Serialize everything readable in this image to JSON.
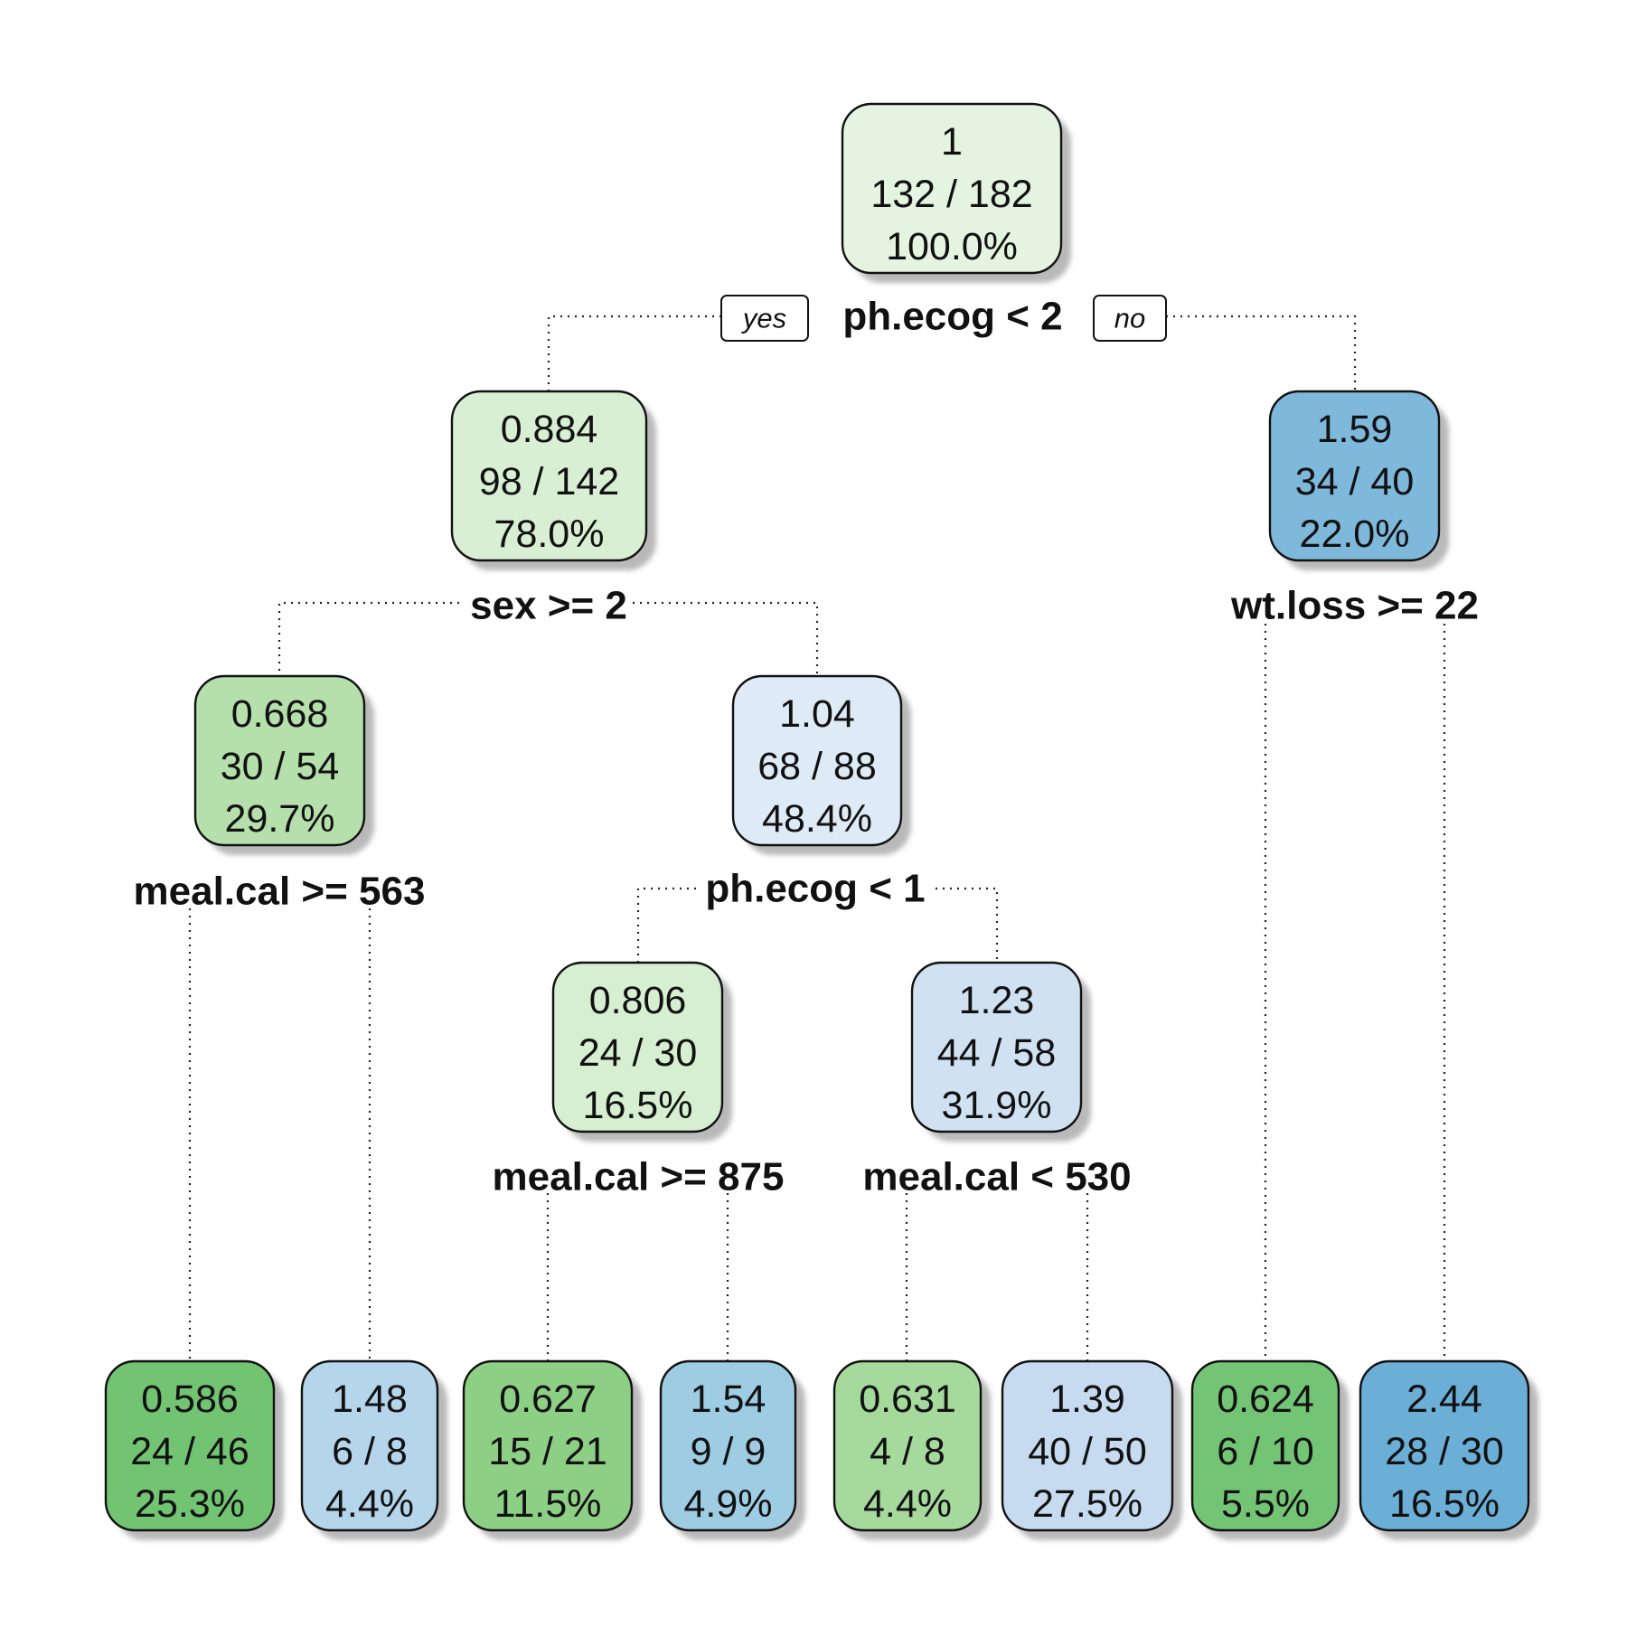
{
  "diagram": {
    "type": "decision-tree",
    "edge_labels": {
      "yes": "yes",
      "no": "no"
    },
    "colors": {
      "n1": "#e5f4e1",
      "n2": "#d8efd3",
      "n3": "#7eb8da",
      "n4": "#b5e0ab",
      "n5": "#deeaf5",
      "n8": "#d6efd0",
      "n9": "#d0e2f2",
      "l1": "#72c372",
      "l2": "#b5d5ea",
      "l3": "#8dcf85",
      "l4": "#9ecce3",
      "l5": "#a5da9c",
      "l6": "#c6dbef",
      "l7": "#74c476",
      "l8": "#6baed6"
    },
    "nodes": [
      {
        "id": "n1",
        "value": "1",
        "count": "132 / 182",
        "percent": "100.0%"
      },
      {
        "id": "n2",
        "value": "0.884",
        "count": "98 / 142",
        "percent": "78.0%"
      },
      {
        "id": "n3",
        "value": "1.59",
        "count": "34 / 40",
        "percent": "22.0%"
      },
      {
        "id": "n4",
        "value": "0.668",
        "count": "30 / 54",
        "percent": "29.7%"
      },
      {
        "id": "n5",
        "value": "1.04",
        "count": "68 / 88",
        "percent": "48.4%"
      },
      {
        "id": "n8",
        "value": "0.806",
        "count": "24 / 30",
        "percent": "16.5%"
      },
      {
        "id": "n9",
        "value": "1.23",
        "count": "44 / 58",
        "percent": "31.9%"
      },
      {
        "id": "l1",
        "value": "0.586",
        "count": "24 / 46",
        "percent": "25.3%"
      },
      {
        "id": "l2",
        "value": "1.48",
        "count": "6 / 8",
        "percent": "4.4%"
      },
      {
        "id": "l3",
        "value": "0.627",
        "count": "15 / 21",
        "percent": "11.5%"
      },
      {
        "id": "l4",
        "value": "1.54",
        "count": "9 / 9",
        "percent": "4.9%"
      },
      {
        "id": "l5",
        "value": "0.631",
        "count": "4 / 8",
        "percent": "4.4%"
      },
      {
        "id": "l6",
        "value": "1.39",
        "count": "40 / 50",
        "percent": "27.5%"
      },
      {
        "id": "l7",
        "value": "0.624",
        "count": "6 / 10",
        "percent": "5.5%"
      },
      {
        "id": "l8",
        "value": "2.44",
        "count": "28 / 30",
        "percent": "16.5%"
      }
    ],
    "splits": [
      {
        "id": "s1",
        "label": "ph.ecog < 2"
      },
      {
        "id": "s2",
        "label": "sex >= 2"
      },
      {
        "id": "s3",
        "label": "wt.loss >= 22"
      },
      {
        "id": "s4",
        "label": "meal.cal >= 563"
      },
      {
        "id": "s5",
        "label": "ph.ecog < 1"
      },
      {
        "id": "s8",
        "label": "meal.cal >= 875"
      },
      {
        "id": "s9",
        "label": "meal.cal < 530"
      }
    ]
  }
}
